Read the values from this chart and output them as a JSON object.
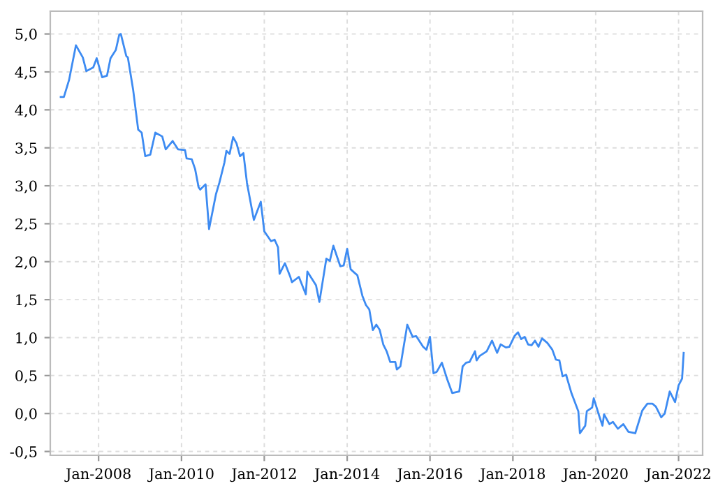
{
  "chart_data": {
    "type": "line",
    "x": [
      "2007-02-01",
      "2007-03-01",
      "2007-04-15",
      "2007-06-15",
      "2007-08-15",
      "2007-09-15",
      "2007-11-15",
      "2007-12-15",
      "2008-02-01",
      "2008-03-15",
      "2008-04-15",
      "2008-06-01",
      "2008-07-01",
      "2008-07-15",
      "2008-09-01",
      "2008-09-15",
      "2008-11-01",
      "2008-12-15",
      "2009-01-15",
      "2009-02-15",
      "2009-04-01",
      "2009-05-15",
      "2009-07-15",
      "2009-08-15",
      "2009-10-15",
      "2009-12-01",
      "2010-02-01",
      "2010-02-15",
      "2010-04-01",
      "2010-05-01",
      "2010-06-01",
      "2010-06-15",
      "2010-08-01",
      "2010-09-01",
      "2010-11-01",
      "2010-12-01",
      "2011-01-15",
      "2011-02-01",
      "2011-03-01",
      "2011-04-01",
      "2011-05-01",
      "2011-06-01",
      "2011-07-01",
      "2011-08-01",
      "2011-10-01",
      "2011-12-01",
      "2012-01-01",
      "2012-03-01",
      "2012-04-01",
      "2012-05-01",
      "2012-05-15",
      "2012-07-01",
      "2012-08-15",
      "2012-09-01",
      "2012-11-01",
      "2013-01-01",
      "2013-01-15",
      "2013-04-01",
      "2013-05-01",
      "2013-07-01",
      "2013-08-01",
      "2013-09-01",
      "2013-11-01",
      "2013-12-01",
      "2014-01-01",
      "2014-02-01",
      "2014-04-01",
      "2014-05-15",
      "2014-06-15",
      "2014-07-15",
      "2014-08-15",
      "2014-09-15",
      "2014-10-15",
      "2014-11-15",
      "2014-12-15",
      "2015-01-15",
      "2015-03-01",
      "2015-03-15",
      "2015-04-15",
      "2015-06-15",
      "2015-08-01",
      "2015-09-01",
      "2015-11-01",
      "2015-12-01",
      "2016-01-01",
      "2016-02-01",
      "2016-03-01",
      "2016-04-15",
      "2016-06-01",
      "2016-07-15",
      "2016-09-15",
      "2016-10-15",
      "2016-11-15",
      "2016-12-15",
      "2017-02-01",
      "2017-02-15",
      "2017-03-15",
      "2017-04-15",
      "2017-05-15",
      "2017-07-01",
      "2017-08-15",
      "2017-09-15",
      "2017-11-01",
      "2017-12-01",
      "2018-01-15",
      "2018-02-15",
      "2018-03-15",
      "2018-04-15",
      "2018-05-15",
      "2018-06-15",
      "2018-07-15",
      "2018-08-15",
      "2018-09-15",
      "2018-11-01",
      "2018-12-15",
      "2019-01-15",
      "2019-02-15",
      "2019-03-15",
      "2019-04-15",
      "2019-06-01",
      "2019-08-01",
      "2019-08-15",
      "2019-10-01",
      "2019-10-15",
      "2019-12-01",
      "2019-12-15",
      "2020-02-01",
      "2020-03-01",
      "2020-03-15",
      "2020-05-01",
      "2020-06-01",
      "2020-07-15",
      "2020-09-01",
      "2020-10-15",
      "2020-12-15",
      "2021-02-15",
      "2021-04-01",
      "2021-05-15",
      "2021-06-15",
      "2021-08-01",
      "2021-09-01",
      "2021-10-15",
      "2021-12-01",
      "2022-01-01",
      "2022-02-01",
      "2022-02-15"
    ],
    "series": [
      {
        "color": "#3d8bf2",
        "values": [
          4.17,
          4.17,
          4.39,
          4.85,
          4.69,
          4.51,
          4.56,
          4.68,
          4.43,
          4.45,
          4.68,
          4.79,
          4.99,
          5.0,
          4.71,
          4.69,
          4.26,
          3.74,
          3.7,
          3.39,
          3.41,
          3.7,
          3.65,
          3.48,
          3.59,
          3.48,
          3.47,
          3.36,
          3.35,
          3.22,
          2.98,
          2.95,
          3.02,
          2.43,
          2.89,
          3.04,
          3.31,
          3.46,
          3.42,
          3.64,
          3.56,
          3.39,
          3.43,
          3.04,
          2.55,
          2.79,
          2.4,
          2.27,
          2.29,
          2.19,
          1.84,
          1.98,
          1.81,
          1.73,
          1.8,
          1.57,
          1.87,
          1.69,
          1.47,
          2.04,
          2.01,
          2.21,
          1.94,
          1.95,
          2.17,
          1.9,
          1.82,
          1.55,
          1.43,
          1.37,
          1.1,
          1.17,
          1.1,
          0.91,
          0.82,
          0.68,
          0.68,
          0.58,
          0.62,
          1.17,
          1.01,
          1.02,
          0.88,
          0.84,
          1.01,
          0.53,
          0.55,
          0.67,
          0.45,
          0.27,
          0.29,
          0.62,
          0.67,
          0.68,
          0.82,
          0.7,
          0.76,
          0.79,
          0.82,
          0.96,
          0.8,
          0.91,
          0.87,
          0.88,
          1.02,
          1.07,
          0.98,
          1.01,
          0.91,
          0.9,
          0.96,
          0.88,
          0.99,
          0.93,
          0.84,
          0.71,
          0.7,
          0.49,
          0.51,
          0.27,
          0.03,
          -0.26,
          -0.16,
          0.03,
          0.08,
          0.2,
          -0.03,
          -0.16,
          -0.01,
          -0.14,
          -0.11,
          -0.2,
          -0.14,
          -0.24,
          -0.26,
          0.04,
          0.13,
          0.13,
          0.09,
          -0.05,
          0.0,
          0.29,
          0.15,
          0.37,
          0.46,
          0.8
        ]
      }
    ],
    "xlim": [
      "2006-11-01",
      "2022-08-01"
    ],
    "xticks": [
      {
        "value": "2008-01-01",
        "label": "Jan-2008"
      },
      {
        "value": "2010-01-01",
        "label": "Jan-2010"
      },
      {
        "value": "2012-01-01",
        "label": "Jan-2012"
      },
      {
        "value": "2014-01-01",
        "label": "Jan-2014"
      },
      {
        "value": "2016-01-01",
        "label": "Jan-2016"
      },
      {
        "value": "2018-01-01",
        "label": "Jan-2018"
      },
      {
        "value": "2020-01-01",
        "label": "Jan-2020"
      },
      {
        "value": "2022-01-01",
        "label": "Jan-2022"
      }
    ],
    "ylim": [
      -0.55,
      5.3
    ],
    "yticks": [
      {
        "value": -0.5,
        "label": "-0,5"
      },
      {
        "value": 0,
        "label": "0,0"
      },
      {
        "value": 0.5,
        "label": "0,5"
      },
      {
        "value": 1,
        "label": "1,0"
      },
      {
        "value": 1.5,
        "label": "1,5"
      },
      {
        "value": 2,
        "label": "2,0"
      },
      {
        "value": 2.5,
        "label": "2,5"
      },
      {
        "value": 3,
        "label": "3,0"
      },
      {
        "value": 3.5,
        "label": "3,5"
      },
      {
        "value": 4,
        "label": "4,0"
      },
      {
        "value": 4.5,
        "label": "4,5"
      },
      {
        "value": 5,
        "label": "5,0"
      }
    ],
    "grid": true,
    "legend": false
  }
}
